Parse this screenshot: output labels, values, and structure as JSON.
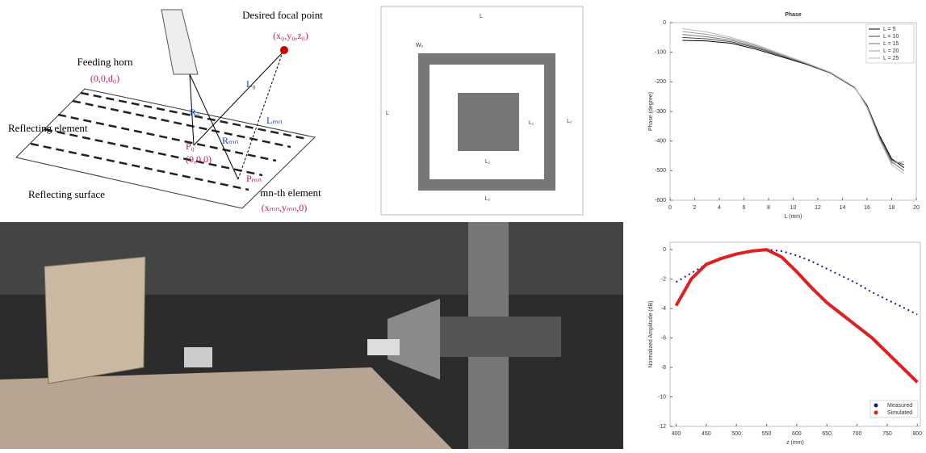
{
  "diagram": {
    "focal_label": "Desired focal point",
    "focal_coord": "(x₀,y₀,z₀)",
    "horn_label": "Feeding horn",
    "horn_coord": "(0,0,d₀)",
    "element_label": "Reflecting element",
    "surface_label": "Reflecting surface",
    "mn_label": "mn-th element",
    "mn_coord": "(xₘₙ,yₘₙ,0)",
    "origin_coord": "(0,0,0)",
    "p0": "P₀",
    "pmn": "Pₘₙ",
    "l0": "L₀",
    "lmn": "Lₘₙ",
    "rmn": "Rₘₙ",
    "r0": "R₀"
  },
  "unit_cell": {
    "top": "L",
    "left": "L",
    "w0": "W₀",
    "l1_right": "L₁",
    "l1_bottom": "L₁",
    "l2_right": "L₂",
    "l2_bottom": "L₂"
  },
  "chart_data": [
    {
      "type": "line",
      "title": "Phase",
      "x_label": "L (mm)",
      "y_label": "Phase (degree)",
      "xlim": [
        0,
        20
      ],
      "ylim": [
        -600,
        0
      ],
      "xticks": [
        0,
        2,
        4,
        6,
        8,
        10,
        12,
        14,
        16,
        18,
        20
      ],
      "yticks": [
        0,
        -100,
        -200,
        -300,
        -400,
        -500,
        -600
      ],
      "legend": "upper right",
      "x": [
        1,
        3,
        5,
        7,
        9,
        11,
        13,
        15,
        16,
        17,
        18,
        19
      ],
      "series": [
        {
          "name": "L = 5",
          "color": "#000000",
          "values": [
            -60,
            -62,
            -70,
            -90,
            -115,
            -140,
            -170,
            -220,
            -280,
            -380,
            -460,
            -490
          ]
        },
        {
          "name": "L = 10",
          "color": "#444444",
          "values": [
            -50,
            -55,
            -65,
            -85,
            -112,
            -138,
            -170,
            -220,
            -282,
            -385,
            -465,
            -480
          ]
        },
        {
          "name": "L = 15",
          "color": "#777777",
          "values": [
            -40,
            -48,
            -60,
            -82,
            -110,
            -137,
            -168,
            -218,
            -285,
            -390,
            -470,
            -500
          ]
        },
        {
          "name": "L = 20",
          "color": "#999999",
          "values": [
            -30,
            -40,
            -55,
            -78,
            -108,
            -136,
            -168,
            -218,
            -286,
            -392,
            -475,
            -470
          ]
        },
        {
          "name": "L = 25",
          "color": "#bbbbbb",
          "values": [
            -20,
            -32,
            -50,
            -75,
            -105,
            -135,
            -167,
            -217,
            -288,
            -395,
            -480,
            -510
          ]
        }
      ]
    },
    {
      "type": "line",
      "x_label": "z (mm)",
      "y_label": "Normalized Amplitude (dB)",
      "xlim": [
        390,
        805
      ],
      "ylim": [
        -12,
        0.5
      ],
      "xticks": [
        400,
        450,
        500,
        550,
        600,
        650,
        700,
        750,
        800
      ],
      "yticks": [
        0,
        -2,
        -4,
        -6,
        -8,
        -10,
        -12
      ],
      "legend": "lower right",
      "x": [
        400,
        425,
        450,
        475,
        500,
        525,
        550,
        575,
        600,
        625,
        650,
        675,
        700,
        725,
        750,
        775,
        800
      ],
      "series": [
        {
          "name": "Measured",
          "color": "#1a1a8c",
          "values": [
            -2.2,
            -1.6,
            -1.0,
            -0.6,
            -0.3,
            -0.1,
            0,
            -0.1,
            -0.4,
            -0.8,
            -1.3,
            -1.8,
            -2.3,
            -2.9,
            -3.4,
            -3.9,
            -4.4
          ]
        },
        {
          "name": "Simulated",
          "color": "#e02020",
          "values": [
            -3.8,
            -2.0,
            -1.0,
            -0.6,
            -0.3,
            -0.1,
            0,
            -0.5,
            -1.5,
            -2.6,
            -3.6,
            -4.4,
            -5.2,
            -6.0,
            -7.0,
            -8.0,
            -9.0
          ]
        }
      ]
    }
  ]
}
